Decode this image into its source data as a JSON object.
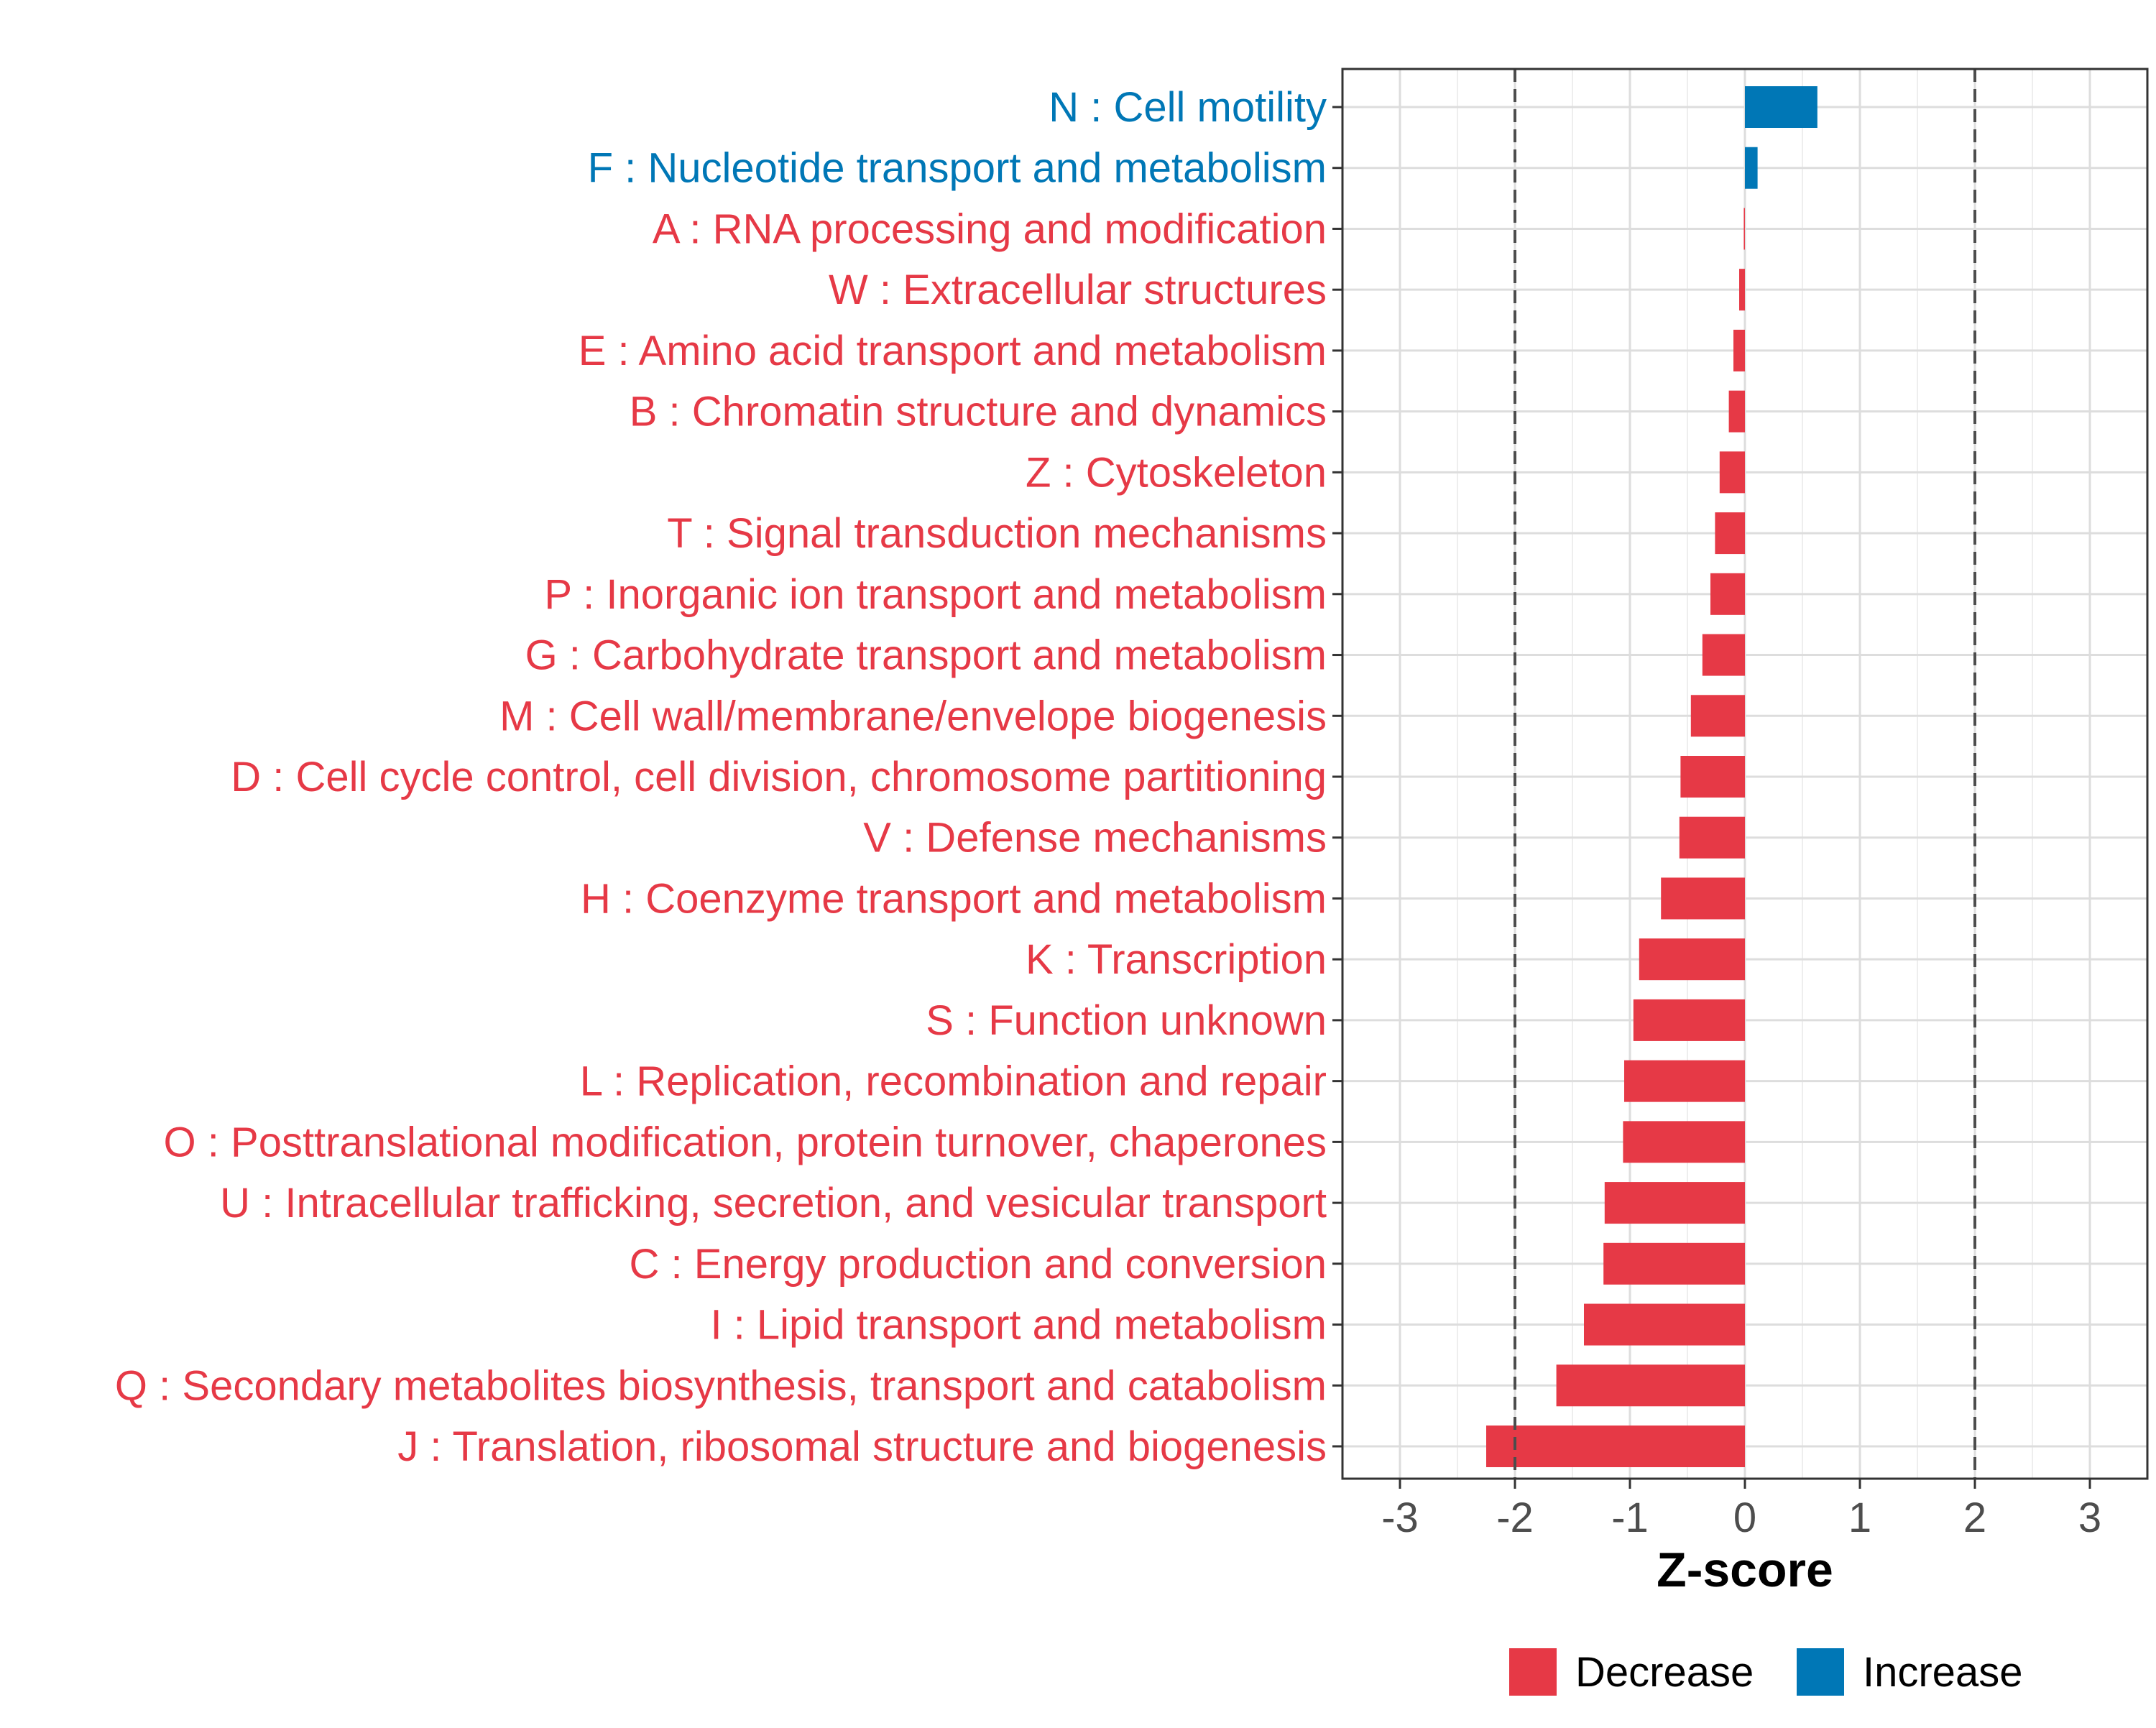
{
  "chart_data": {
    "type": "bar",
    "orientation": "horizontal",
    "title": "",
    "xlabel": "Z-score",
    "ylabel": "",
    "xlim": [
      -3.5,
      3.5
    ],
    "x_ticks": [
      -3,
      -2,
      -1,
      0,
      1,
      2,
      3
    ],
    "x_tick_labels": [
      "-3",
      "-2",
      "-1",
      "0",
      "1",
      "2",
      "3"
    ],
    "reference_lines": [
      -2,
      2
    ],
    "grid": true,
    "legend_position": "bottom",
    "legend": [
      {
        "name": "Decrease",
        "color": "#E63946"
      },
      {
        "name": "Increase",
        "color": "#0077B6"
      }
    ],
    "categories": [
      "N : Cell motility",
      "F : Nucleotide transport and metabolism",
      "A : RNA processing and modification",
      "W : Extracellular structures",
      "E : Amino acid transport and metabolism",
      "B : Chromatin structure and dynamics",
      "Z : Cytoskeleton",
      "T : Signal transduction mechanisms",
      "P : Inorganic ion transport and metabolism",
      "G : Carbohydrate transport and metabolism",
      "M : Cell wall/membrane/envelope biogenesis",
      "D : Cell cycle control, cell division, chromosome partitioning",
      "V : Defense mechanisms",
      "H : Coenzyme transport and metabolism",
      "K : Transcription",
      "S : Function unknown",
      "L : Replication, recombination and repair",
      "O : Posttranslational modification, protein turnover, chaperones",
      "U : Intracellular trafficking, secretion, and vesicular transport",
      "C : Energy production and conversion",
      "I : Lipid transport and metabolism",
      "Q : Secondary metabolites biosynthesis, transport and catabolism",
      "J : Translation, ribosomal structure and biogenesis"
    ],
    "values": [
      0.63,
      0.11,
      -0.01,
      -0.05,
      -0.1,
      -0.14,
      -0.22,
      -0.26,
      -0.3,
      -0.37,
      -0.47,
      -0.56,
      -0.57,
      -0.73,
      -0.92,
      -0.97,
      -1.05,
      -1.06,
      -1.22,
      -1.23,
      -1.4,
      -1.64,
      -2.25
    ],
    "direction": [
      "Increase",
      "Increase",
      "Decrease",
      "Decrease",
      "Decrease",
      "Decrease",
      "Decrease",
      "Decrease",
      "Decrease",
      "Decrease",
      "Decrease",
      "Decrease",
      "Decrease",
      "Decrease",
      "Decrease",
      "Decrease",
      "Decrease",
      "Decrease",
      "Decrease",
      "Decrease",
      "Decrease",
      "Decrease",
      "Decrease"
    ]
  }
}
